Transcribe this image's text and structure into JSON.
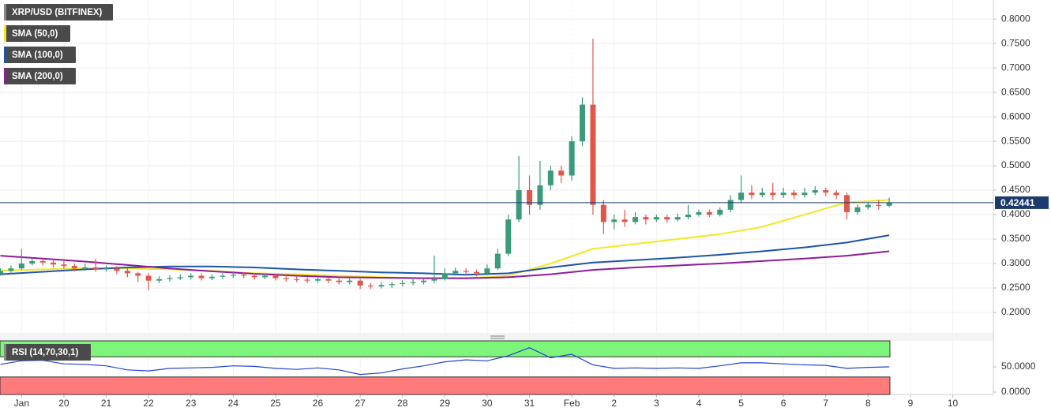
{
  "chart_data": [
    {
      "type": "candlestick",
      "title": "XRP/USD (BITFINEX)",
      "x": [
        -0.5,
        -0.25,
        0,
        0.25,
        0.5,
        0.75,
        1,
        1.25,
        1.5,
        1.75,
        2,
        2.25,
        2.5,
        2.75,
        3,
        3.25,
        3.5,
        3.75,
        4,
        4.25,
        4.5,
        4.75,
        5,
        5.25,
        5.5,
        5.75,
        6,
        6.25,
        6.5,
        6.75,
        7,
        7.25,
        7.5,
        7.75,
        8,
        8.25,
        8.5,
        8.75,
        9,
        9.25,
        9.5,
        9.75,
        10,
        10.25,
        10.5,
        10.75,
        11,
        11.25,
        11.5,
        11.75,
        12,
        12.25,
        12.5,
        12.75,
        13,
        13.25,
        13.5,
        13.75,
        14,
        14.25,
        14.5,
        14.75,
        15,
        15.25,
        15.5,
        15.75,
        16,
        16.25,
        16.5,
        16.75,
        17,
        17.25,
        17.5,
        17.75,
        18,
        18.25,
        18.5,
        18.75,
        19,
        19.25,
        19.5,
        19.75,
        20,
        20.25,
        20.5
      ],
      "open": [
        0.28,
        0.285,
        0.29,
        0.3,
        0.305,
        0.302,
        0.298,
        0.295,
        0.29,
        0.292,
        0.288,
        0.29,
        0.285,
        0.28,
        0.275,
        0.265,
        0.268,
        0.27,
        0.272,
        0.275,
        0.27,
        0.273,
        0.275,
        0.277,
        0.275,
        0.272,
        0.275,
        0.27,
        0.268,
        0.267,
        0.265,
        0.268,
        0.265,
        0.262,
        0.265,
        0.255,
        0.253,
        0.256,
        0.258,
        0.26,
        0.262,
        0.265,
        0.268,
        0.28,
        0.285,
        0.283,
        0.28,
        0.29,
        0.32,
        0.39,
        0.45,
        0.42,
        0.46,
        0.49,
        0.48,
        0.55,
        0.625,
        0.42,
        0.385,
        0.39,
        0.385,
        0.395,
        0.39,
        0.395,
        0.39,
        0.395,
        0.4,
        0.405,
        0.4,
        0.41,
        0.43,
        0.445,
        0.44,
        0.445,
        0.44,
        0.445,
        0.44,
        0.445,
        0.45,
        0.445,
        0.44,
        0.405,
        0.415,
        0.42,
        0.418
      ],
      "high": [
        0.29,
        0.296,
        0.33,
        0.31,
        0.31,
        0.308,
        0.31,
        0.3,
        0.3,
        0.31,
        0.296,
        0.295,
        0.29,
        0.283,
        0.28,
        0.274,
        0.276,
        0.278,
        0.28,
        0.28,
        0.278,
        0.28,
        0.284,
        0.282,
        0.28,
        0.28,
        0.278,
        0.275,
        0.273,
        0.272,
        0.273,
        0.272,
        0.27,
        0.27,
        0.268,
        0.26,
        0.262,
        0.263,
        0.266,
        0.268,
        0.27,
        0.316,
        0.29,
        0.292,
        0.29,
        0.288,
        0.298,
        0.33,
        0.4,
        0.52,
        0.48,
        0.51,
        0.5,
        0.5,
        0.56,
        0.64,
        0.76,
        0.43,
        0.4,
        0.41,
        0.405,
        0.4,
        0.4,
        0.4,
        0.402,
        0.42,
        0.41,
        0.41,
        0.415,
        0.44,
        0.48,
        0.46,
        0.455,
        0.465,
        0.455,
        0.45,
        0.455,
        0.458,
        0.455,
        0.45,
        0.445,
        0.42,
        0.425,
        0.43,
        0.435
      ],
      "low": [
        0.275,
        0.28,
        0.287,
        0.296,
        0.296,
        0.292,
        0.289,
        0.284,
        0.285,
        0.283,
        0.283,
        0.278,
        0.272,
        0.262,
        0.245,
        0.26,
        0.263,
        0.266,
        0.267,
        0.265,
        0.266,
        0.268,
        0.27,
        0.27,
        0.267,
        0.268,
        0.265,
        0.263,
        0.262,
        0.26,
        0.26,
        0.26,
        0.257,
        0.257,
        0.248,
        0.248,
        0.249,
        0.25,
        0.253,
        0.255,
        0.257,
        0.26,
        0.265,
        0.275,
        0.277,
        0.274,
        0.276,
        0.287,
        0.315,
        0.385,
        0.4,
        0.41,
        0.45,
        0.465,
        0.47,
        0.54,
        0.4,
        0.36,
        0.37,
        0.375,
        0.38,
        0.38,
        0.385,
        0.383,
        0.386,
        0.39,
        0.396,
        0.395,
        0.396,
        0.405,
        0.425,
        0.432,
        0.435,
        0.43,
        0.434,
        0.432,
        0.435,
        0.44,
        0.438,
        0.432,
        0.39,
        0.4,
        0.41,
        0.41,
        0.415
      ],
      "close": [
        0.285,
        0.29,
        0.3,
        0.305,
        0.302,
        0.298,
        0.295,
        0.29,
        0.292,
        0.288,
        0.29,
        0.285,
        0.28,
        0.275,
        0.265,
        0.268,
        0.27,
        0.272,
        0.275,
        0.27,
        0.273,
        0.275,
        0.277,
        0.275,
        0.272,
        0.275,
        0.27,
        0.268,
        0.267,
        0.265,
        0.268,
        0.265,
        0.262,
        0.265,
        0.255,
        0.253,
        0.256,
        0.258,
        0.26,
        0.262,
        0.265,
        0.268,
        0.28,
        0.285,
        0.283,
        0.28,
        0.29,
        0.32,
        0.39,
        0.45,
        0.42,
        0.46,
        0.49,
        0.48,
        0.55,
        0.625,
        0.42,
        0.385,
        0.39,
        0.385,
        0.395,
        0.39,
        0.395,
        0.39,
        0.395,
        0.4,
        0.405,
        0.4,
        0.41,
        0.43,
        0.445,
        0.44,
        0.445,
        0.44,
        0.445,
        0.44,
        0.445,
        0.45,
        0.445,
        0.44,
        0.405,
        0.415,
        0.42,
        0.418,
        0.4244
      ],
      "up_color": "#3b9a7a",
      "down_color": "#e0574a",
      "series": [
        {
          "name": "SMA (50,0)",
          "color": "#f2e825",
          "x": [
            -0.5,
            0.5,
            1.5,
            2.5,
            3.5,
            4.5,
            5.5,
            6.5,
            7.5,
            8.5,
            9.5,
            10.5,
            11.5,
            12.5,
            13.5,
            14.5,
            15.5,
            16.5,
            17.5,
            18.5,
            19.5,
            20.5
          ],
          "values": [
            0.285,
            0.288,
            0.29,
            0.29,
            0.288,
            0.285,
            0.28,
            0.278,
            0.275,
            0.272,
            0.27,
            0.27,
            0.275,
            0.3,
            0.33,
            0.34,
            0.35,
            0.36,
            0.375,
            0.4,
            0.425,
            0.43
          ]
        },
        {
          "name": "SMA (100,0)",
          "color": "#1d55a8",
          "x": [
            -0.5,
            0.5,
            1.5,
            2.5,
            3.5,
            4.5,
            5.5,
            6.5,
            7.5,
            8.5,
            9.5,
            10.5,
            11.5,
            12.5,
            13.5,
            14.5,
            15.5,
            16.5,
            17.5,
            18.5,
            19.5,
            20.5
          ],
          "values": [
            0.278,
            0.283,
            0.288,
            0.292,
            0.294,
            0.294,
            0.292,
            0.288,
            0.285,
            0.282,
            0.28,
            0.277,
            0.28,
            0.292,
            0.302,
            0.307,
            0.312,
            0.318,
            0.325,
            0.333,
            0.343,
            0.358
          ]
        },
        {
          "name": "SMA (200,0)",
          "color": "#8e1c9a",
          "x": [
            -0.5,
            0.5,
            1.5,
            2.5,
            3.5,
            4.5,
            5.5,
            6.5,
            7.5,
            8.5,
            9.5,
            10.5,
            11.5,
            12.5,
            13.5,
            14.5,
            15.5,
            16.5,
            17.5,
            18.5,
            19.5,
            20.5
          ],
          "values": [
            0.316,
            0.31,
            0.304,
            0.297,
            0.29,
            0.284,
            0.279,
            0.275,
            0.272,
            0.271,
            0.27,
            0.27,
            0.272,
            0.278,
            0.287,
            0.292,
            0.296,
            0.3,
            0.305,
            0.31,
            0.316,
            0.325
          ]
        }
      ],
      "last_price": 0.42441,
      "xlim": [
        -0.51,
        22.96
      ],
      "xticks": [
        {
          "value": 0,
          "label": "Jan"
        },
        {
          "value": 1,
          "label": "20"
        },
        {
          "value": 2,
          "label": "21"
        },
        {
          "value": 3,
          "label": "22"
        },
        {
          "value": 4,
          "label": "23"
        },
        {
          "value": 5,
          "label": "24"
        },
        {
          "value": 6,
          "label": "25"
        },
        {
          "value": 7,
          "label": "26"
        },
        {
          "value": 8,
          "label": "27"
        },
        {
          "value": 9,
          "label": "28"
        },
        {
          "value": 10,
          "label": "29"
        },
        {
          "value": 11,
          "label": "30"
        },
        {
          "value": 12,
          "label": "31"
        },
        {
          "value": 13,
          "label": "Feb"
        },
        {
          "value": 14,
          "label": "2"
        },
        {
          "value": 15,
          "label": "3"
        },
        {
          "value": 16,
          "label": "4"
        },
        {
          "value": 17,
          "label": "5"
        },
        {
          "value": 18,
          "label": "6"
        },
        {
          "value": 19,
          "label": "7"
        },
        {
          "value": 20,
          "label": "8"
        },
        {
          "value": 21,
          "label": "9"
        },
        {
          "value": 22,
          "label": "10"
        }
      ],
      "ylim": [
        0.158,
        0.839
      ],
      "yticks": [
        {
          "value": 0.2,
          "label": "0.2000"
        },
        {
          "value": 0.25,
          "label": "0.2500"
        },
        {
          "value": 0.3,
          "label": "0.3000"
        },
        {
          "value": 0.35,
          "label": "0.3500"
        },
        {
          "value": 0.4,
          "label": "0.4000"
        },
        {
          "value": 0.45,
          "label": "0.4500"
        },
        {
          "value": 0.5,
          "label": "0.5000"
        },
        {
          "value": 0.55,
          "label": "0.5500"
        },
        {
          "value": 0.6,
          "label": "0.6000"
        },
        {
          "value": 0.65,
          "label": "0.6500"
        },
        {
          "value": 0.7,
          "label": "0.7000"
        },
        {
          "value": 0.75,
          "label": "0.7500"
        },
        {
          "value": 0.8,
          "label": "0.8000"
        }
      ],
      "grid": true
    },
    {
      "type": "line",
      "series": [
        {
          "name": "RSI (14,70,30,1)",
          "color": "#2343d6",
          "x": [
            -0.5,
            0,
            0.5,
            1,
            1.5,
            2,
            2.5,
            3,
            3.5,
            4,
            4.5,
            5,
            5.5,
            6,
            6.5,
            7,
            7.5,
            8,
            8.5,
            9,
            9.5,
            10,
            10.5,
            11,
            11.5,
            12,
            12.5,
            13,
            13.5,
            14,
            14.5,
            15,
            15.5,
            16,
            16.5,
            17,
            17.5,
            18,
            18.5,
            19,
            19.5,
            20,
            20.5
          ],
          "values": [
            55,
            62,
            63,
            56,
            55,
            52,
            44,
            42,
            47,
            48,
            49,
            52,
            51,
            47,
            45,
            48,
            44,
            35,
            38,
            46,
            52,
            60,
            64,
            62,
            72,
            88,
            68,
            75,
            54,
            47,
            48,
            47,
            48,
            47,
            52,
            58,
            58,
            56,
            54,
            53,
            47,
            49,
            50
          ]
        }
      ],
      "upper_band": 70,
      "lower_band": 30,
      "upper_color": "#7cf57a",
      "lower_color": "#ff7b7b",
      "xlim": [
        -0.51,
        22.96
      ],
      "ylim": [
        -4.7,
        101.6
      ],
      "yticks": [
        {
          "value": 0,
          "label": "0.0000"
        },
        {
          "value": 50,
          "label": "50.0000"
        }
      ]
    }
  ]
}
